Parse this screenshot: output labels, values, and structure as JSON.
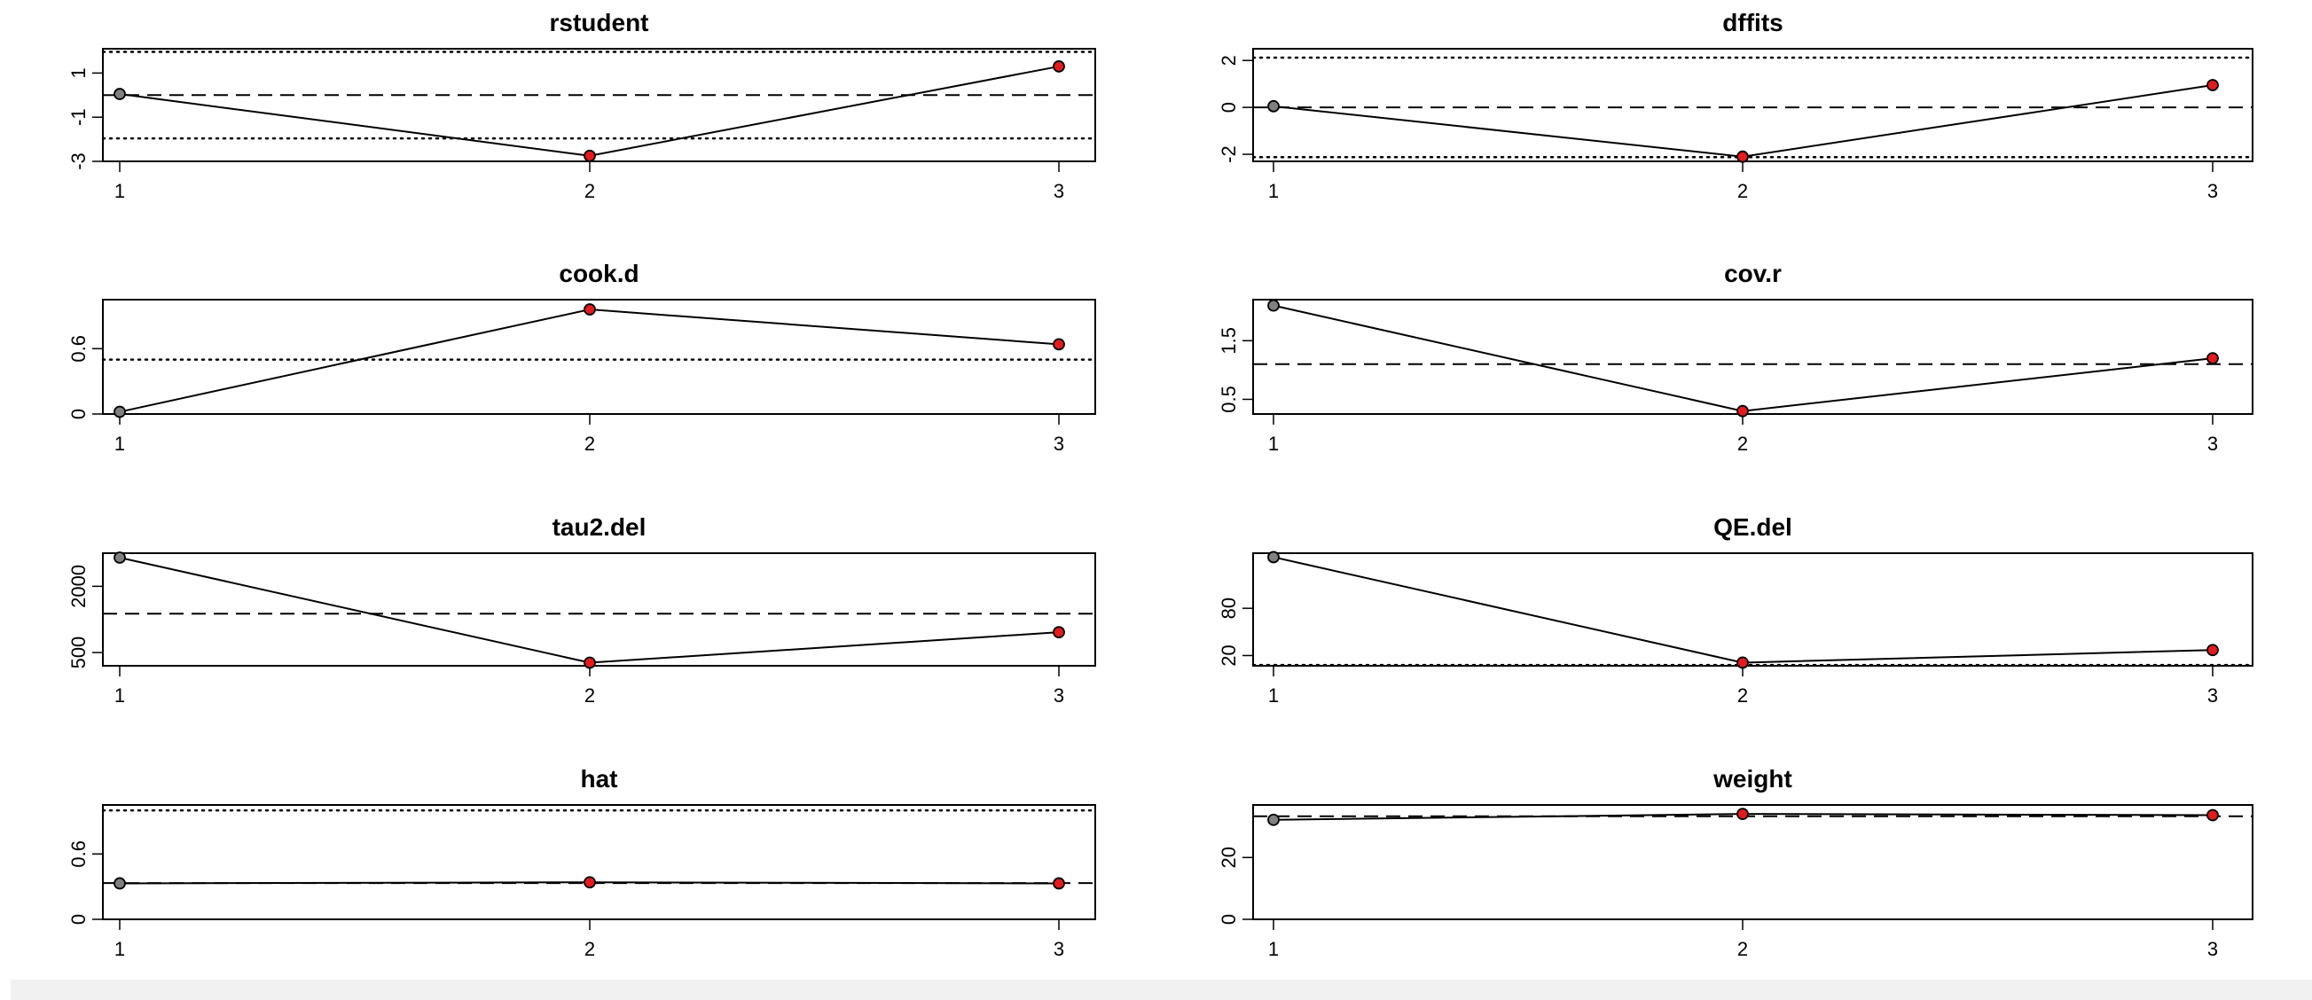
{
  "colors": {
    "background": "#ffffff",
    "axis": "#000000",
    "line": "#000000",
    "highlight_point": "#e41a1c",
    "normal_point": "#808080",
    "bottom_strip": "#f1f1f1"
  },
  "chart_data": [
    {
      "type": "line",
      "title": "rstudent",
      "x": [
        1,
        2,
        3
      ],
      "values": [
        0.05,
        -2.75,
        1.3
      ],
      "point_colors": [
        "gray",
        "red",
        "red"
      ],
      "ylim": [
        -3,
        2.1
      ],
      "yticks": [
        -3,
        -1,
        1
      ],
      "xticks": [
        1,
        2,
        3
      ],
      "ref_dashed": 0,
      "ref_dotted": [
        -1.96,
        1.96
      ]
    },
    {
      "type": "line",
      "title": "dffits",
      "x": [
        1,
        2,
        3
      ],
      "values": [
        0.05,
        -2.1,
        0.95
      ],
      "point_colors": [
        "gray",
        "red",
        "red"
      ],
      "ylim": [
        -2.3,
        2.5
      ],
      "yticks": [
        -2,
        0,
        2
      ],
      "xticks": [
        1,
        2,
        3
      ],
      "ref_dashed": 0,
      "ref_dotted": [
        -2.12,
        2.12
      ]
    },
    {
      "type": "line",
      "title": "cook.d",
      "x": [
        1,
        2,
        3
      ],
      "values": [
        0.02,
        0.96,
        0.64
      ],
      "point_colors": [
        "gray",
        "red",
        "red"
      ],
      "ylim": [
        0,
        1.05
      ],
      "yticks": [
        0.0,
        0.6
      ],
      "xticks": [
        1,
        2,
        3
      ],
      "ref_dotted": [
        0.5
      ]
    },
    {
      "type": "line",
      "title": "cov.r",
      "x": [
        1,
        2,
        3
      ],
      "values": [
        2.1,
        0.3,
        1.2
      ],
      "point_colors": [
        "gray",
        "red",
        "red"
      ],
      "ylim": [
        0.25,
        2.2
      ],
      "yticks": [
        0.5,
        1.5
      ],
      "xticks": [
        1,
        2,
        3
      ],
      "ref_dashed": 1.1
    },
    {
      "type": "line",
      "title": "tau2.del",
      "x": [
        1,
        2,
        3
      ],
      "values": [
        2650,
        270,
        960
      ],
      "point_colors": [
        "gray",
        "red",
        "red"
      ],
      "ylim": [
        200,
        2750
      ],
      "yticks": [
        500,
        2000
      ],
      "xticks": [
        1,
        2,
        3
      ],
      "ref_dashed": 1380
    },
    {
      "type": "line",
      "title": "QE.del",
      "x": [
        1,
        2,
        3
      ],
      "values": [
        145,
        11,
        27
      ],
      "point_colors": [
        "gray",
        "red",
        "red"
      ],
      "ylim": [
        7,
        150
      ],
      "yticks": [
        20,
        80
      ],
      "xticks": [
        1,
        2,
        3
      ],
      "ref_dotted": [
        8
      ]
    },
    {
      "type": "line",
      "title": "hat",
      "x": [
        1,
        2,
        3
      ],
      "values": [
        0.33,
        0.34,
        0.33
      ],
      "point_colors": [
        "gray",
        "red",
        "red"
      ],
      "ylim": [
        0,
        1.05
      ],
      "yticks": [
        0.0,
        0.6
      ],
      "xticks": [
        1,
        2,
        3
      ],
      "ref_dashed": 0.333,
      "ref_dotted": [
        1.0
      ]
    },
    {
      "type": "line",
      "title": "weight",
      "x": [
        1,
        2,
        3
      ],
      "values": [
        32.2,
        34.1,
        33.7
      ],
      "point_colors": [
        "gray",
        "red",
        "red"
      ],
      "ylim": [
        0,
        37
      ],
      "yticks": [
        0,
        20
      ],
      "xticks": [
        1,
        2,
        3
      ],
      "ref_dashed": 33.33
    }
  ]
}
